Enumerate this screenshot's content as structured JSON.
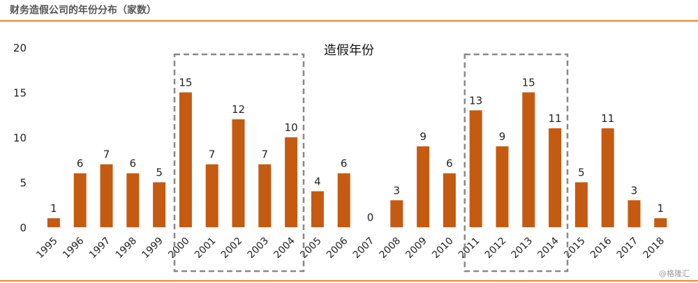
{
  "page": {
    "title": "财务造假公司的年份分布（家数）",
    "watermark": "@格隆汇"
  },
  "colors": {
    "bar": "#c55a11",
    "rule": "#e8862c",
    "highlight_box": "#888888",
    "text": "#222222"
  },
  "chart_data": {
    "type": "bar",
    "title": "造假年份",
    "xlabel": "",
    "ylabel": "",
    "categories": [
      "1995",
      "1996",
      "1997",
      "1998",
      "1999",
      "2000",
      "2001",
      "2002",
      "2003",
      "2004",
      "2005",
      "2006",
      "2007",
      "2008",
      "2009",
      "2010",
      "2011",
      "2012",
      "2013",
      "2014",
      "2015",
      "2016",
      "2017",
      "2018"
    ],
    "values": [
      1,
      6,
      7,
      6,
      5,
      15,
      7,
      12,
      7,
      10,
      4,
      6,
      0,
      3,
      9,
      6,
      13,
      9,
      15,
      11,
      5,
      11,
      3,
      1
    ],
    "ylim": [
      0,
      20
    ],
    "yticks": [
      0,
      5,
      10,
      15,
      20
    ],
    "grid": false,
    "legend": "none",
    "data_labels": true,
    "highlight_ranges": [
      [
        "2000",
        "2004"
      ],
      [
        "2011",
        "2014"
      ]
    ]
  }
}
